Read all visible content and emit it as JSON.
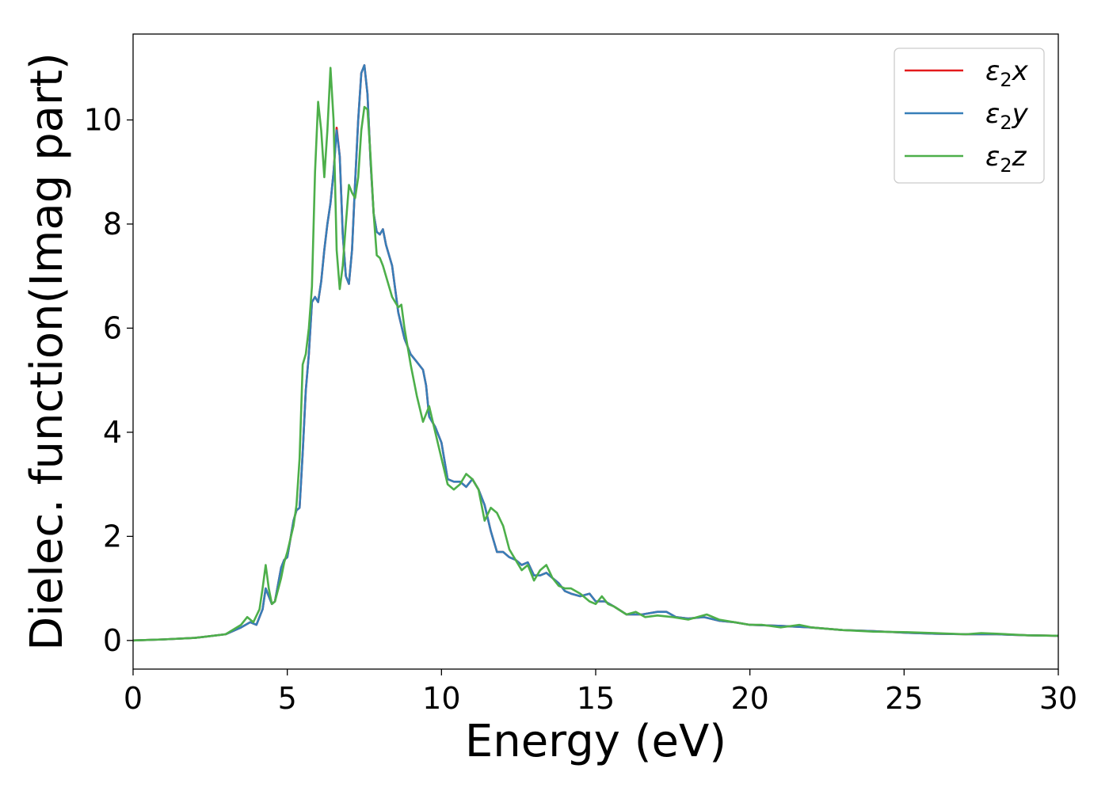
{
  "chart_data": {
    "type": "line",
    "xlabel": "Energy (eV)",
    "ylabel": "Dielec. function(Imag part)",
    "xlim": [
      0,
      30
    ],
    "ylim": [
      -0.55,
      11.65
    ],
    "xticks": [
      0,
      5,
      10,
      15,
      20,
      25,
      30
    ],
    "yticks": [
      0,
      2,
      4,
      6,
      8,
      10
    ],
    "grid": false,
    "legend_position": "top-right",
    "legend_entries": [
      {
        "name": "ε",
        "sub": "2",
        "suffix": "x"
      },
      {
        "name": "ε",
        "sub": "2",
        "suffix": "y"
      },
      {
        "name": "ε",
        "sub": "2",
        "suffix": "z"
      }
    ],
    "series": [
      {
        "name": "ε2x",
        "color": "#e41a1c",
        "points": [
          [
            0,
            0.0
          ],
          [
            1,
            0.02
          ],
          [
            2,
            0.05
          ],
          [
            3,
            0.12
          ],
          [
            3.5,
            0.25
          ],
          [
            3.8,
            0.35
          ],
          [
            4.0,
            0.3
          ],
          [
            4.2,
            0.6
          ],
          [
            4.3,
            1.0
          ],
          [
            4.4,
            0.85
          ],
          [
            4.5,
            0.7
          ],
          [
            4.6,
            0.75
          ],
          [
            4.8,
            1.4
          ],
          [
            4.9,
            1.55
          ],
          [
            5.0,
            1.6
          ],
          [
            5.2,
            2.3
          ],
          [
            5.3,
            2.5
          ],
          [
            5.4,
            2.55
          ],
          [
            5.5,
            3.6
          ],
          [
            5.6,
            4.8
          ],
          [
            5.7,
            5.5
          ],
          [
            5.8,
            6.5
          ],
          [
            5.9,
            6.6
          ],
          [
            6.0,
            6.5
          ],
          [
            6.1,
            6.9
          ],
          [
            6.2,
            7.5
          ],
          [
            6.3,
            8.0
          ],
          [
            6.4,
            8.4
          ],
          [
            6.5,
            9.0
          ],
          [
            6.6,
            9.85
          ],
          [
            6.7,
            9.3
          ],
          [
            6.8,
            7.8
          ],
          [
            6.9,
            7.0
          ],
          [
            7.0,
            6.85
          ],
          [
            7.1,
            7.5
          ],
          [
            7.2,
            8.8
          ],
          [
            7.3,
            10.0
          ],
          [
            7.4,
            10.9
          ],
          [
            7.5,
            11.05
          ],
          [
            7.6,
            10.5
          ],
          [
            7.7,
            9.2
          ],
          [
            7.8,
            8.2
          ],
          [
            7.9,
            7.85
          ],
          [
            8.0,
            7.8
          ],
          [
            8.1,
            7.9
          ],
          [
            8.2,
            7.6
          ],
          [
            8.4,
            7.2
          ],
          [
            8.6,
            6.3
          ],
          [
            8.8,
            5.8
          ],
          [
            9.0,
            5.5
          ],
          [
            9.2,
            5.35
          ],
          [
            9.4,
            5.2
          ],
          [
            9.5,
            4.9
          ],
          [
            9.6,
            4.3
          ],
          [
            9.8,
            4.1
          ],
          [
            10.0,
            3.8
          ],
          [
            10.2,
            3.1
          ],
          [
            10.4,
            3.05
          ],
          [
            10.6,
            3.05
          ],
          [
            10.8,
            2.95
          ],
          [
            11.0,
            3.1
          ],
          [
            11.2,
            2.9
          ],
          [
            11.4,
            2.6
          ],
          [
            11.6,
            2.1
          ],
          [
            11.8,
            1.7
          ],
          [
            12.0,
            1.7
          ],
          [
            12.2,
            1.6
          ],
          [
            12.4,
            1.55
          ],
          [
            12.6,
            1.45
          ],
          [
            12.8,
            1.5
          ],
          [
            13.0,
            1.25
          ],
          [
            13.2,
            1.25
          ],
          [
            13.4,
            1.3
          ],
          [
            13.6,
            1.2
          ],
          [
            13.8,
            1.1
          ],
          [
            14.0,
            0.95
          ],
          [
            14.2,
            0.9
          ],
          [
            14.5,
            0.85
          ],
          [
            14.8,
            0.9
          ],
          [
            15.0,
            0.75
          ],
          [
            15.3,
            0.75
          ],
          [
            15.6,
            0.65
          ],
          [
            16.0,
            0.5
          ],
          [
            16.5,
            0.5
          ],
          [
            17.0,
            0.55
          ],
          [
            17.3,
            0.55
          ],
          [
            17.6,
            0.45
          ],
          [
            18.0,
            0.42
          ],
          [
            18.5,
            0.45
          ],
          [
            19.0,
            0.38
          ],
          [
            19.5,
            0.35
          ],
          [
            20.0,
            0.3
          ],
          [
            21.0,
            0.28
          ],
          [
            22.0,
            0.25
          ],
          [
            23.0,
            0.2
          ],
          [
            24.0,
            0.18
          ],
          [
            25.0,
            0.15
          ],
          [
            26.0,
            0.13
          ],
          [
            27.0,
            0.12
          ],
          [
            28.0,
            0.12
          ],
          [
            29.0,
            0.1
          ],
          [
            30.0,
            0.09
          ]
        ]
      },
      {
        "name": "ε2y",
        "color": "#377eb8",
        "points": [
          [
            0,
            0.0
          ],
          [
            1,
            0.02
          ],
          [
            2,
            0.05
          ],
          [
            3,
            0.12
          ],
          [
            3.5,
            0.25
          ],
          [
            3.8,
            0.35
          ],
          [
            4.0,
            0.3
          ],
          [
            4.2,
            0.6
          ],
          [
            4.3,
            1.0
          ],
          [
            4.4,
            0.85
          ],
          [
            4.5,
            0.7
          ],
          [
            4.6,
            0.75
          ],
          [
            4.8,
            1.4
          ],
          [
            4.9,
            1.55
          ],
          [
            5.0,
            1.6
          ],
          [
            5.2,
            2.3
          ],
          [
            5.3,
            2.5
          ],
          [
            5.4,
            2.55
          ],
          [
            5.5,
            3.6
          ],
          [
            5.6,
            4.8
          ],
          [
            5.7,
            5.5
          ],
          [
            5.8,
            6.5
          ],
          [
            5.9,
            6.6
          ],
          [
            6.0,
            6.5
          ],
          [
            6.1,
            6.9
          ],
          [
            6.2,
            7.5
          ],
          [
            6.3,
            8.0
          ],
          [
            6.4,
            8.4
          ],
          [
            6.5,
            9.0
          ],
          [
            6.6,
            9.8
          ],
          [
            6.7,
            9.3
          ],
          [
            6.8,
            7.8
          ],
          [
            6.9,
            7.0
          ],
          [
            7.0,
            6.85
          ],
          [
            7.1,
            7.5
          ],
          [
            7.2,
            8.8
          ],
          [
            7.3,
            10.0
          ],
          [
            7.4,
            10.9
          ],
          [
            7.5,
            11.05
          ],
          [
            7.6,
            10.5
          ],
          [
            7.7,
            9.2
          ],
          [
            7.8,
            8.2
          ],
          [
            7.9,
            7.85
          ],
          [
            8.0,
            7.8
          ],
          [
            8.1,
            7.9
          ],
          [
            8.2,
            7.6
          ],
          [
            8.4,
            7.2
          ],
          [
            8.6,
            6.3
          ],
          [
            8.8,
            5.8
          ],
          [
            9.0,
            5.5
          ],
          [
            9.2,
            5.35
          ],
          [
            9.4,
            5.2
          ],
          [
            9.5,
            4.9
          ],
          [
            9.6,
            4.3
          ],
          [
            9.8,
            4.1
          ],
          [
            10.0,
            3.8
          ],
          [
            10.2,
            3.1
          ],
          [
            10.4,
            3.05
          ],
          [
            10.6,
            3.05
          ],
          [
            10.8,
            2.95
          ],
          [
            11.0,
            3.1
          ],
          [
            11.2,
            2.9
          ],
          [
            11.4,
            2.6
          ],
          [
            11.6,
            2.1
          ],
          [
            11.8,
            1.7
          ],
          [
            12.0,
            1.7
          ],
          [
            12.2,
            1.6
          ],
          [
            12.4,
            1.55
          ],
          [
            12.6,
            1.45
          ],
          [
            12.8,
            1.5
          ],
          [
            13.0,
            1.25
          ],
          [
            13.2,
            1.25
          ],
          [
            13.4,
            1.3
          ],
          [
            13.6,
            1.2
          ],
          [
            13.8,
            1.1
          ],
          [
            14.0,
            0.95
          ],
          [
            14.2,
            0.9
          ],
          [
            14.5,
            0.85
          ],
          [
            14.8,
            0.9
          ],
          [
            15.0,
            0.75
          ],
          [
            15.3,
            0.75
          ],
          [
            15.6,
            0.65
          ],
          [
            16.0,
            0.5
          ],
          [
            16.5,
            0.5
          ],
          [
            17.0,
            0.55
          ],
          [
            17.3,
            0.55
          ],
          [
            17.6,
            0.45
          ],
          [
            18.0,
            0.42
          ],
          [
            18.5,
            0.45
          ],
          [
            19.0,
            0.38
          ],
          [
            19.5,
            0.35
          ],
          [
            20.0,
            0.3
          ],
          [
            21.0,
            0.28
          ],
          [
            22.0,
            0.25
          ],
          [
            23.0,
            0.2
          ],
          [
            24.0,
            0.18
          ],
          [
            25.0,
            0.15
          ],
          [
            26.0,
            0.13
          ],
          [
            27.0,
            0.12
          ],
          [
            28.0,
            0.12
          ],
          [
            29.0,
            0.1
          ],
          [
            30.0,
            0.09
          ]
        ]
      },
      {
        "name": "ε2z",
        "color": "#4daf4a",
        "points": [
          [
            0,
            0.0
          ],
          [
            1,
            0.02
          ],
          [
            2,
            0.05
          ],
          [
            3,
            0.12
          ],
          [
            3.5,
            0.3
          ],
          [
            3.7,
            0.45
          ],
          [
            3.9,
            0.35
          ],
          [
            4.1,
            0.6
          ],
          [
            4.2,
            1.0
          ],
          [
            4.3,
            1.45
          ],
          [
            4.4,
            1.0
          ],
          [
            4.5,
            0.7
          ],
          [
            4.6,
            0.75
          ],
          [
            4.8,
            1.2
          ],
          [
            4.9,
            1.5
          ],
          [
            5.0,
            1.7
          ],
          [
            5.2,
            2.2
          ],
          [
            5.3,
            2.6
          ],
          [
            5.4,
            3.5
          ],
          [
            5.5,
            5.3
          ],
          [
            5.6,
            5.5
          ],
          [
            5.7,
            6.0
          ],
          [
            5.8,
            6.8
          ],
          [
            5.9,
            9.0
          ],
          [
            6.0,
            10.35
          ],
          [
            6.1,
            9.8
          ],
          [
            6.2,
            8.9
          ],
          [
            6.3,
            9.8
          ],
          [
            6.4,
            11.0
          ],
          [
            6.5,
            10.0
          ],
          [
            6.6,
            7.5
          ],
          [
            6.7,
            6.75
          ],
          [
            6.8,
            7.2
          ],
          [
            6.9,
            8.0
          ],
          [
            7.0,
            8.75
          ],
          [
            7.1,
            8.6
          ],
          [
            7.2,
            8.5
          ],
          [
            7.3,
            8.9
          ],
          [
            7.4,
            9.8
          ],
          [
            7.5,
            10.25
          ],
          [
            7.6,
            10.2
          ],
          [
            7.7,
            9.3
          ],
          [
            7.8,
            8.2
          ],
          [
            7.9,
            7.4
          ],
          [
            8.0,
            7.35
          ],
          [
            8.1,
            7.2
          ],
          [
            8.2,
            7.0
          ],
          [
            8.4,
            6.6
          ],
          [
            8.6,
            6.4
          ],
          [
            8.7,
            6.45
          ],
          [
            8.8,
            6.0
          ],
          [
            9.0,
            5.3
          ],
          [
            9.2,
            4.7
          ],
          [
            9.4,
            4.2
          ],
          [
            9.6,
            4.5
          ],
          [
            9.8,
            4.0
          ],
          [
            10.0,
            3.5
          ],
          [
            10.2,
            3.0
          ],
          [
            10.4,
            2.9
          ],
          [
            10.6,
            3.0
          ],
          [
            10.8,
            3.2
          ],
          [
            11.0,
            3.1
          ],
          [
            11.2,
            2.9
          ],
          [
            11.4,
            2.3
          ],
          [
            11.6,
            2.55
          ],
          [
            11.8,
            2.45
          ],
          [
            12.0,
            2.2
          ],
          [
            12.2,
            1.75
          ],
          [
            12.4,
            1.55
          ],
          [
            12.6,
            1.35
          ],
          [
            12.8,
            1.45
          ],
          [
            13.0,
            1.15
          ],
          [
            13.2,
            1.35
          ],
          [
            13.4,
            1.45
          ],
          [
            13.6,
            1.2
          ],
          [
            13.8,
            1.05
          ],
          [
            14.0,
            1.0
          ],
          [
            14.2,
            1.0
          ],
          [
            14.5,
            0.9
          ],
          [
            14.8,
            0.75
          ],
          [
            15.0,
            0.7
          ],
          [
            15.2,
            0.85
          ],
          [
            15.4,
            0.7
          ],
          [
            15.6,
            0.65
          ],
          [
            16.0,
            0.5
          ],
          [
            16.3,
            0.55
          ],
          [
            16.6,
            0.45
          ],
          [
            17.0,
            0.48
          ],
          [
            17.5,
            0.45
          ],
          [
            18.0,
            0.4
          ],
          [
            18.6,
            0.5
          ],
          [
            19.0,
            0.4
          ],
          [
            19.5,
            0.35
          ],
          [
            20.0,
            0.3
          ],
          [
            20.4,
            0.3
          ],
          [
            21.0,
            0.25
          ],
          [
            21.6,
            0.3
          ],
          [
            22.0,
            0.25
          ],
          [
            23.0,
            0.2
          ],
          [
            24.0,
            0.17
          ],
          [
            25.0,
            0.16
          ],
          [
            26.0,
            0.14
          ],
          [
            27.0,
            0.12
          ],
          [
            27.5,
            0.14
          ],
          [
            28.0,
            0.13
          ],
          [
            29.0,
            0.1
          ],
          [
            30.0,
            0.09
          ]
        ]
      }
    ]
  }
}
